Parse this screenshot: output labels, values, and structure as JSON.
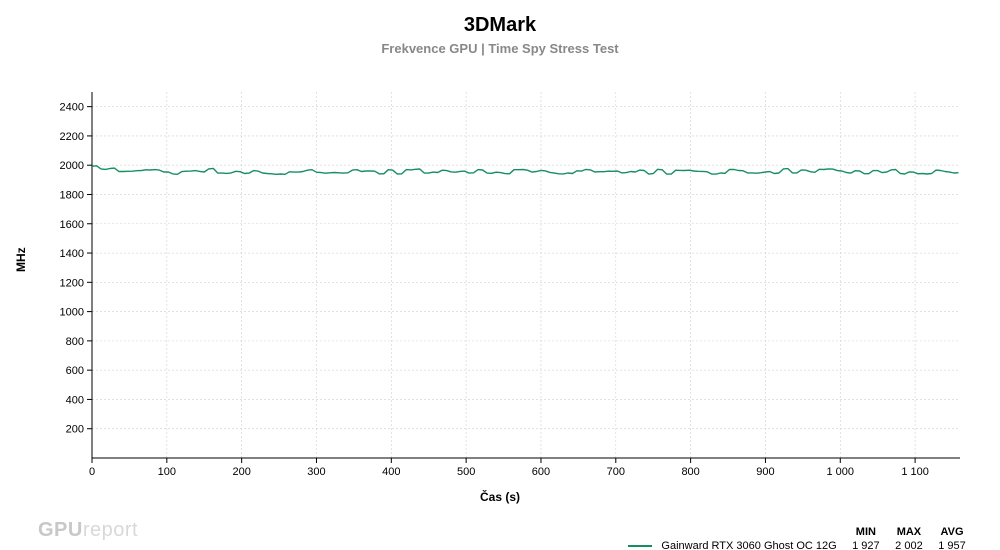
{
  "title": "3DMark",
  "subtitle": "Frekvence GPU | Time Spy Stress Test",
  "yaxis_label": "MHz",
  "xaxis_label": "Čas (s)",
  "watermark_bold": "GPU",
  "watermark_light": "report",
  "legend": {
    "headers": [
      "MIN",
      "MAX",
      "AVG"
    ],
    "series_name": "Gainward RTX 3060 Ghost OC 12G",
    "min": "1 927",
    "max": "2 002",
    "avg": "1 957"
  },
  "chart": {
    "type": "line",
    "background_color": "#ffffff",
    "plot_border_color": "#000000",
    "plot_border_width": 1,
    "grid_color": "#d0d0d0",
    "grid_width": 0.6,
    "tick_label_fontsize": 11,
    "tick_label_color": "#000000",
    "xlim": [
      0,
      1160
    ],
    "ylim": [
      0,
      2500
    ],
    "xticks": [
      0,
      100,
      200,
      300,
      400,
      500,
      600,
      700,
      800,
      900,
      1000,
      1100
    ],
    "xtick_labels": [
      "0",
      "100",
      "200",
      "300",
      "400",
      "500",
      "600",
      "700",
      "800",
      "900",
      "1 000",
      "1 100"
    ],
    "yticks": [
      200,
      400,
      600,
      800,
      1000,
      1200,
      1400,
      1600,
      1800,
      2000,
      2200,
      2400
    ],
    "series": [
      {
        "name": "Gainward RTX 3060 Ghost OC 12G",
        "color": "#168f60",
        "line_width": 1.4,
        "x_start": 0,
        "x_end": 1160,
        "x_step": 6,
        "y_base_initial": 1998,
        "y_base_settle": 1957,
        "settle_after_x": 40,
        "noise_amplitude": 18,
        "noise_seed": 123457
      }
    ]
  },
  "title_fontsize": 20,
  "subtitle_fontsize": 13,
  "subtitle_color": "#888888",
  "axis_label_fontsize": 12
}
